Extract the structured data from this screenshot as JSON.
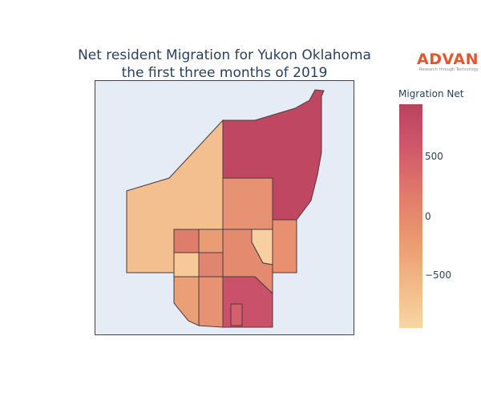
{
  "title": {
    "line1": "Net resident Migration for Yukon Oklahoma",
    "line2": "the first three months of 2019"
  },
  "logo": {
    "word": "ADVAN",
    "tagline": "Research through Technology",
    "color": "#e8542b"
  },
  "colorbar": {
    "title": "Migration Net",
    "ticks": [
      "500",
      "0",
      "−500"
    ],
    "scale_colors": [
      "#f7d6a3",
      "#f2b887",
      "#ea986e",
      "#e07a6a",
      "#d1586a",
      "#b9425f"
    ]
  },
  "map": {
    "background": "#e5ecf6",
    "regions": [
      {
        "id": "west-large",
        "fill": "#f4bf8f"
      },
      {
        "id": "northeast-large",
        "fill": "#bf4762"
      },
      {
        "id": "east-mid",
        "fill": "#e69273"
      },
      {
        "id": "east-strip",
        "fill": "#e8906f"
      },
      {
        "id": "center-light",
        "fill": "#f7cfa0"
      },
      {
        "id": "center-diagonal",
        "fill": "#e48a6e"
      },
      {
        "id": "grid-a",
        "fill": "#de7d6c"
      },
      {
        "id": "grid-b",
        "fill": "#ea9c75"
      },
      {
        "id": "grid-c",
        "fill": "#f6c996"
      },
      {
        "id": "grid-d",
        "fill": "#e08670"
      },
      {
        "id": "south-a",
        "fill": "#eb9f77"
      },
      {
        "id": "south-b",
        "fill": "#e69273"
      },
      {
        "id": "south-c",
        "fill": "#c9526a"
      },
      {
        "id": "south-notch",
        "fill": "#d65f6c"
      }
    ]
  }
}
